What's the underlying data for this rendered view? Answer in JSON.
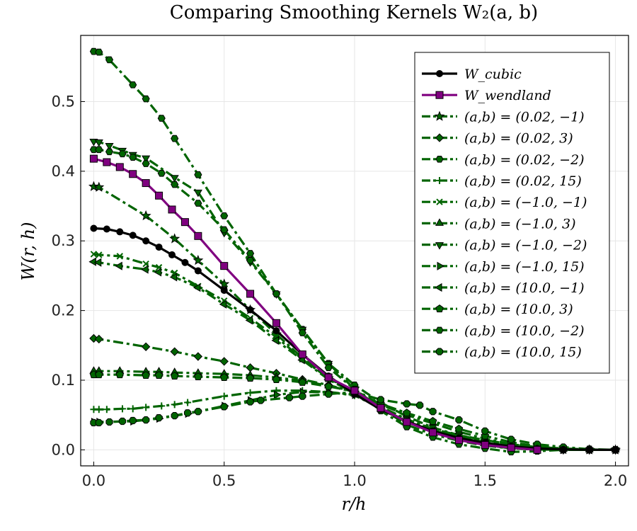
{
  "chart_data": {
    "type": "line",
    "title": "Comparing Smoothing Kernels W₂(a, b)",
    "xlabel": "r/h",
    "ylabel": "W(r, h)",
    "xlim": [
      -0.05,
      2.05
    ],
    "ylim": [
      -0.023,
      0.595
    ],
    "xticks": [
      0.0,
      0.5,
      1.0,
      1.5,
      2.0
    ],
    "xtick_labels": [
      "0.0",
      "0.5",
      "1.0",
      "1.5",
      "2.0"
    ],
    "yticks": [
      0.0,
      0.1,
      0.2,
      0.3,
      0.4,
      0.5
    ],
    "ytick_labels": [
      "0.0",
      "0.1",
      "0.2",
      "0.3",
      "0.4",
      "0.5"
    ],
    "grid": true,
    "legend_position": "top-right",
    "colors": {
      "cubic": "#000000",
      "wendland": "#800080",
      "family": "#006400"
    },
    "series": [
      {
        "name": "W_cubic",
        "legend": "W_cubic",
        "color": "#000000",
        "dash": "solid",
        "marker": "circle",
        "x": [
          0.0,
          0.05,
          0.1,
          0.15,
          0.2,
          0.25,
          0.3,
          0.35,
          0.4,
          0.5,
          0.6,
          0.7,
          0.8,
          0.9,
          1.0,
          1.1,
          1.2,
          1.3,
          1.4,
          1.5,
          1.6,
          1.7,
          1.8,
          1.9,
          2.0
        ],
        "y": [
          0.318,
          0.317,
          0.313,
          0.308,
          0.3,
          0.291,
          0.28,
          0.269,
          0.257,
          0.229,
          0.201,
          0.171,
          0.137,
          0.106,
          0.08,
          0.058,
          0.041,
          0.027,
          0.017,
          0.01,
          0.005,
          0.002,
          0.0006,
          0.0001,
          0.0
        ]
      },
      {
        "name": "W_wendland",
        "legend": "W_wendland",
        "color": "#800080",
        "dash": "solid",
        "marker": "square",
        "x": [
          0.0,
          0.05,
          0.1,
          0.15,
          0.2,
          0.25,
          0.3,
          0.35,
          0.4,
          0.5,
          0.6,
          0.7,
          0.8,
          0.9,
          1.0,
          1.1,
          1.2,
          1.3,
          1.4,
          1.5,
          1.6,
          1.7
        ],
        "y": [
          0.418,
          0.413,
          0.406,
          0.396,
          0.383,
          0.365,
          0.345,
          0.327,
          0.307,
          0.264,
          0.224,
          0.182,
          0.137,
          0.104,
          0.085,
          0.06,
          0.04,
          0.025,
          0.014,
          0.007,
          0.003,
          0.0
        ]
      },
      {
        "name": "(a,b) = (0.02,-1)",
        "legend": "(a,b) = (0.02, −1)",
        "color": "#006400",
        "dash": "dash-dot",
        "marker": "star",
        "x": [
          0.0,
          0.02,
          0.2,
          0.31,
          0.4,
          0.5,
          0.6,
          0.7,
          0.8,
          0.9,
          1.0,
          1.1,
          1.2,
          1.3,
          1.4,
          1.5,
          1.6,
          1.7,
          1.8,
          1.9,
          2.0
        ],
        "y": [
          0.378,
          0.377,
          0.336,
          0.303,
          0.272,
          0.238,
          0.201,
          0.166,
          0.132,
          0.103,
          0.082,
          0.06,
          0.04,
          0.028,
          0.018,
          0.01,
          0.005,
          0.002,
          0.0006,
          0.0001,
          0.0
        ]
      },
      {
        "name": "(a,b) = (0.02,3)",
        "legend": "(a,b) = (0.02, 3)",
        "color": "#006400",
        "dash": "dash-dot",
        "marker": "diamond",
        "x": [
          0.0,
          0.02,
          0.2,
          0.31,
          0.4,
          0.5,
          0.6,
          0.7,
          0.8,
          0.9,
          1.0,
          1.1,
          1.2,
          1.3,
          1.4,
          1.5,
          1.6,
          1.7,
          1.8,
          1.9,
          2.0
        ],
        "y": [
          0.16,
          0.159,
          0.148,
          0.141,
          0.134,
          0.127,
          0.118,
          0.11,
          0.101,
          0.093,
          0.083,
          0.06,
          0.04,
          0.028,
          0.018,
          0.011,
          0.005,
          0.002,
          0.0006,
          0.0001,
          0.0
        ]
      },
      {
        "name": "(a,b) = (0.02,-2)",
        "legend": "(a,b) = (0.02, −2)",
        "color": "#006400",
        "dash": "dash-dot",
        "marker": "hexagon",
        "x": [
          0.0,
          0.02,
          0.06,
          0.15,
          0.2,
          0.26,
          0.31,
          0.4,
          0.5,
          0.6,
          0.7,
          0.8,
          0.9,
          1.0,
          1.1,
          1.2,
          1.3,
          1.4,
          1.5,
          1.6,
          1.7,
          1.8,
          1.9,
          2.0
        ],
        "y": [
          0.572,
          0.571,
          0.56,
          0.524,
          0.504,
          0.476,
          0.447,
          0.395,
          0.336,
          0.282,
          0.224,
          0.173,
          0.124,
          0.093,
          0.068,
          0.048,
          0.032,
          0.021,
          0.014,
          0.008,
          0.004,
          0.002,
          0.0005,
          0.0
        ]
      },
      {
        "name": "(a,b) = (0.02,15)",
        "legend": "(a,b) = (0.02, 15)",
        "color": "#006400",
        "dash": "dash-dot",
        "marker": "cross",
        "x": [
          0.0,
          0.02,
          0.05,
          0.11,
          0.15,
          0.2,
          0.26,
          0.31,
          0.36,
          0.5,
          0.6,
          0.7,
          0.8,
          0.9,
          1.0,
          1.1,
          1.2,
          1.3,
          1.4,
          1.5,
          1.6,
          1.7,
          1.8,
          1.9,
          2.0
        ],
        "y": [
          0.058,
          0.058,
          0.058,
          0.059,
          0.059,
          0.061,
          0.063,
          0.065,
          0.068,
          0.077,
          0.082,
          0.085,
          0.085,
          0.083,
          0.078,
          0.06,
          0.043,
          0.03,
          0.021,
          0.013,
          0.007,
          0.003,
          0.001,
          0.0002,
          0.0
        ]
      },
      {
        "name": "(a,b) = (-1.0,-1)",
        "legend": "(a,b) = (−1.0, −1)",
        "color": "#006400",
        "dash": "dash-dot",
        "marker": "x",
        "x": [
          0.0,
          0.02,
          0.1,
          0.2,
          0.25,
          0.31,
          0.4,
          0.5,
          0.6,
          0.7,
          0.8,
          0.9,
          1.0,
          1.1,
          1.2,
          1.3,
          1.4,
          1.5,
          1.6,
          1.7,
          1.8,
          1.9,
          2.0
        ],
        "y": [
          0.281,
          0.28,
          0.278,
          0.267,
          0.262,
          0.254,
          0.235,
          0.214,
          0.189,
          0.162,
          0.13,
          0.103,
          0.085,
          0.062,
          0.044,
          0.03,
          0.02,
          0.012,
          0.006,
          0.002,
          0.0006,
          0.0001,
          0.0
        ]
      },
      {
        "name": "(a,b) = (-1.0,3)",
        "legend": "(a,b) = (−1.0, 3)",
        "color": "#006400",
        "dash": "dash-dot",
        "marker": "triangle-up",
        "x": [
          0.0,
          0.02,
          0.1,
          0.2,
          0.25,
          0.31,
          0.4,
          0.5,
          0.6,
          0.7,
          0.8,
          0.9,
          1.0,
          1.1,
          1.2,
          1.3,
          1.4,
          1.5,
          1.6,
          1.7,
          1.8,
          1.9,
          2.0
        ],
        "y": [
          0.113,
          0.113,
          0.113,
          0.112,
          0.112,
          0.111,
          0.11,
          0.109,
          0.107,
          0.104,
          0.099,
          0.092,
          0.083,
          0.065,
          0.05,
          0.038,
          0.026,
          0.016,
          0.008,
          0.003,
          0.0008,
          0.0001,
          0.0
        ]
      },
      {
        "name": "(a,b) = (-1.0,-2)",
        "legend": "(a,b) = (−1.0, −2)",
        "color": "#006400",
        "dash": "dash-dot",
        "marker": "triangle-down",
        "x": [
          0.0,
          0.02,
          0.06,
          0.11,
          0.15,
          0.2,
          0.31,
          0.4,
          0.5,
          0.6,
          0.7,
          0.8,
          0.9,
          1.0,
          1.1,
          1.2,
          1.3,
          1.4,
          1.5,
          1.6,
          1.7,
          1.8,
          1.9,
          2.0
        ],
        "y": [
          0.443,
          0.442,
          0.437,
          0.43,
          0.424,
          0.419,
          0.391,
          0.37,
          0.312,
          0.27,
          0.224,
          0.173,
          0.124,
          0.087,
          0.06,
          0.036,
          0.022,
          0.013,
          0.006,
          0.002,
          0.0005,
          0.0001,
          0.0,
          0.0
        ]
      },
      {
        "name": "(a,b) = (-1.0,15)",
        "legend": "(a,b) = (−1.0, 15)",
        "color": "#006400",
        "dash": "dash-dot",
        "marker": "triangle-right",
        "x": [
          0.0,
          0.02,
          0.15,
          0.25,
          0.36,
          0.5,
          0.6,
          0.7,
          0.8,
          0.9,
          1.0,
          1.1,
          1.2,
          1.3,
          1.4,
          1.5,
          1.6,
          1.7,
          1.8,
          1.9,
          2.0
        ],
        "y": [
          0.04,
          0.04,
          0.041,
          0.045,
          0.052,
          0.063,
          0.071,
          0.079,
          0.083,
          0.083,
          0.079,
          0.06,
          0.04,
          0.026,
          0.015,
          0.007,
          0.002,
          0.0005,
          0.0001,
          0.0,
          0.0
        ]
      },
      {
        "name": "(a,b) = (10.0,-1)",
        "legend": "(a,b) = (10.0, −1)",
        "color": "#006400",
        "dash": "dash-dot",
        "marker": "triangle-left",
        "x": [
          0.0,
          0.02,
          0.1,
          0.2,
          0.25,
          0.31,
          0.4,
          0.5,
          0.6,
          0.7,
          0.8,
          0.9,
          1.0,
          1.1,
          1.2,
          1.3,
          1.4,
          1.5,
          1.6,
          1.7,
          1.8,
          1.9,
          2.0
        ],
        "y": [
          0.27,
          0.269,
          0.264,
          0.259,
          0.255,
          0.248,
          0.233,
          0.209,
          0.186,
          0.157,
          0.129,
          0.101,
          0.081,
          0.06,
          0.041,
          0.027,
          0.017,
          0.01,
          0.005,
          0.002,
          0.0006,
          0.0001,
          0.0
        ]
      },
      {
        "name": "(a,b) = (10.0,3)",
        "legend": "(a,b) = (10.0, 3)",
        "color": "#006400",
        "dash": "dash-dot",
        "marker": "pentagon",
        "x": [
          0.0,
          0.02,
          0.1,
          0.2,
          0.25,
          0.31,
          0.4,
          0.5,
          0.6,
          0.7,
          0.8,
          0.9,
          1.0,
          1.1,
          1.2,
          1.3,
          1.4,
          1.5,
          1.6,
          1.7,
          1.8,
          1.9,
          2.0
        ],
        "y": [
          0.108,
          0.108,
          0.108,
          0.107,
          0.107,
          0.106,
          0.105,
          0.104,
          0.103,
          0.101,
          0.097,
          0.091,
          0.084,
          0.066,
          0.053,
          0.041,
          0.03,
          0.02,
          0.011,
          0.005,
          0.0015,
          0.0002,
          0.0
        ]
      },
      {
        "name": "(a,b) = (10.0,-2)",
        "legend": "(a,b) = (10.0, −2)",
        "color": "#006400",
        "dash": "dash-dot",
        "marker": "hexagon",
        "x": [
          0.0,
          0.02,
          0.06,
          0.11,
          0.15,
          0.2,
          0.26,
          0.31,
          0.4,
          0.5,
          0.6,
          0.7,
          0.8,
          0.9,
          1.0,
          1.1,
          1.2,
          1.3,
          1.4,
          1.5,
          1.6,
          1.7,
          1.8,
          1.9,
          2.0
        ],
        "y": [
          0.431,
          0.431,
          0.428,
          0.425,
          0.42,
          0.411,
          0.397,
          0.381,
          0.354,
          0.316,
          0.272,
          0.224,
          0.168,
          0.118,
          0.087,
          0.056,
          0.033,
          0.018,
          0.008,
          0.002,
          -0.003,
          -0.002,
          0.0,
          0.0,
          0.0
        ]
      },
      {
        "name": "(a,b) = (10.0,15)",
        "legend": "(a,b) = (10.0, 15)",
        "color": "#006400",
        "dash": "dash-dot",
        "marker": "octagon",
        "x": [
          0.0,
          0.02,
          0.06,
          0.11,
          0.15,
          0.2,
          0.25,
          0.31,
          0.36,
          0.4,
          0.5,
          0.6,
          0.64,
          0.75,
          0.8,
          0.9,
          1.0,
          1.1,
          1.2,
          1.25,
          1.3,
          1.4,
          1.5,
          1.6,
          1.7,
          1.8,
          1.9,
          2.0
        ],
        "y": [
          0.039,
          0.039,
          0.04,
          0.041,
          0.042,
          0.043,
          0.046,
          0.049,
          0.053,
          0.055,
          0.062,
          0.069,
          0.071,
          0.075,
          0.077,
          0.08,
          0.083,
          0.072,
          0.066,
          0.064,
          0.055,
          0.043,
          0.027,
          0.015,
          0.008,
          0.004,
          0.001,
          0.0
        ]
      }
    ]
  }
}
